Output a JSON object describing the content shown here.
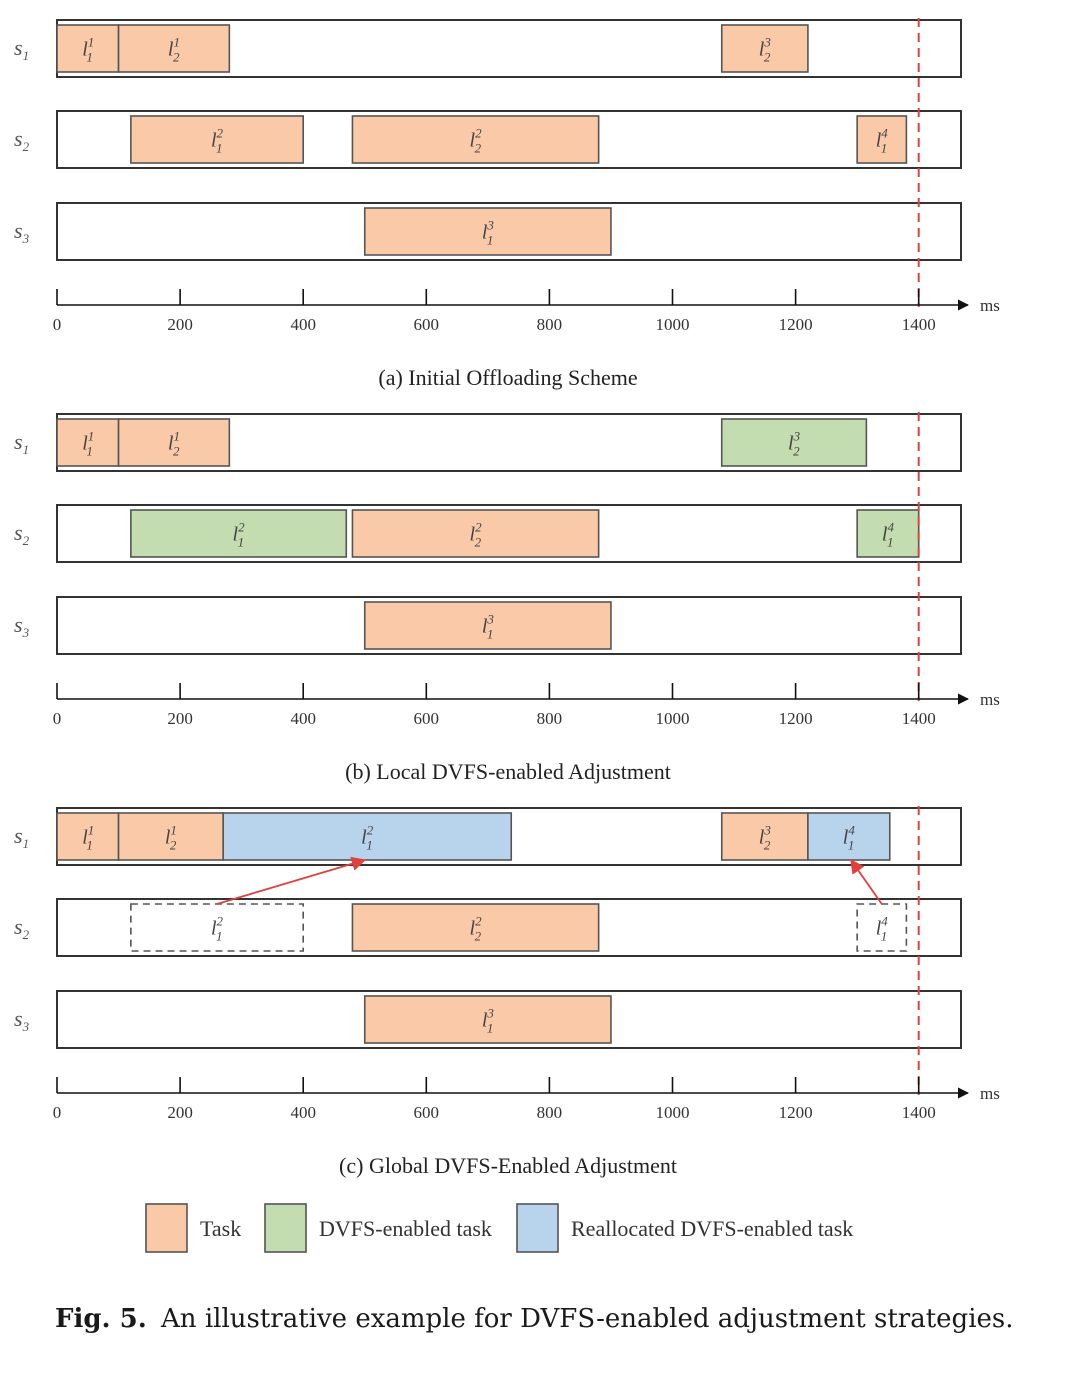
{
  "colors": {
    "task": "#fac9a8",
    "dvfs": "#c3dcb0",
    "realloc": "#b8d3ec",
    "deadline": "#e0413c",
    "arrow": "#e0413c"
  },
  "axis": {
    "ticks": [
      0,
      200,
      400,
      600,
      800,
      1000,
      1200,
      1400
    ],
    "unit": "ms",
    "max": 1470,
    "deadline": 1400
  },
  "servers": [
    {
      "base": "s",
      "sub": "1"
    },
    {
      "base": "s",
      "sub": "2"
    },
    {
      "base": "s",
      "sub": "3"
    }
  ],
  "panels": [
    {
      "caption": "(a) Initial Offloading Scheme",
      "tasks": [
        {
          "server": 0,
          "start": 0,
          "end": 100,
          "kind": "task",
          "base": "l",
          "sub": "1",
          "sup": "1"
        },
        {
          "server": 0,
          "start": 100,
          "end": 280,
          "kind": "task",
          "base": "l",
          "sub": "2",
          "sup": "1"
        },
        {
          "server": 0,
          "start": 1080,
          "end": 1220,
          "kind": "task",
          "base": "l",
          "sub": "2",
          "sup": "3"
        },
        {
          "server": 1,
          "start": 120,
          "end": 400,
          "kind": "task",
          "base": "l",
          "sub": "1",
          "sup": "2"
        },
        {
          "server": 1,
          "start": 480,
          "end": 880,
          "kind": "task",
          "base": "l",
          "sub": "2",
          "sup": "2"
        },
        {
          "server": 1,
          "start": 1300,
          "end": 1380,
          "kind": "task",
          "base": "l",
          "sub": "1",
          "sup": "4"
        },
        {
          "server": 2,
          "start": 500,
          "end": 900,
          "kind": "task",
          "base": "l",
          "sub": "1",
          "sup": "3"
        }
      ],
      "arrows": []
    },
    {
      "caption": "(b) Local DVFS-enabled Adjustment",
      "tasks": [
        {
          "server": 0,
          "start": 0,
          "end": 100,
          "kind": "task",
          "base": "l",
          "sub": "1",
          "sup": "1"
        },
        {
          "server": 0,
          "start": 100,
          "end": 280,
          "kind": "task",
          "base": "l",
          "sub": "2",
          "sup": "1"
        },
        {
          "server": 0,
          "start": 1080,
          "end": 1315,
          "kind": "dvfs",
          "base": "l",
          "sub": "2",
          "sup": "3"
        },
        {
          "server": 1,
          "start": 120,
          "end": 470,
          "kind": "dvfs",
          "base": "l",
          "sub": "1",
          "sup": "2"
        },
        {
          "server": 1,
          "start": 480,
          "end": 880,
          "kind": "task",
          "base": "l",
          "sub": "2",
          "sup": "2"
        },
        {
          "server": 1,
          "start": 1300,
          "end": 1400,
          "kind": "dvfs",
          "base": "l",
          "sub": "1",
          "sup": "4"
        },
        {
          "server": 2,
          "start": 500,
          "end": 900,
          "kind": "task",
          "base": "l",
          "sub": "1",
          "sup": "3"
        }
      ],
      "arrows": []
    },
    {
      "caption": "(c) Global DVFS-Enabled Adjustment",
      "tasks": [
        {
          "server": 0,
          "start": 0,
          "end": 100,
          "kind": "task",
          "base": "l",
          "sub": "1",
          "sup": "1"
        },
        {
          "server": 0,
          "start": 100,
          "end": 270,
          "kind": "task",
          "base": "l",
          "sub": "2",
          "sup": "1"
        },
        {
          "server": 0,
          "start": 270,
          "end": 738,
          "kind": "realloc",
          "base": "l",
          "sub": "1",
          "sup": "2"
        },
        {
          "server": 0,
          "start": 1080,
          "end": 1220,
          "kind": "task",
          "base": "l",
          "sub": "2",
          "sup": "3"
        },
        {
          "server": 0,
          "start": 1220,
          "end": 1353,
          "kind": "realloc",
          "base": "l",
          "sub": "1",
          "sup": "4"
        },
        {
          "server": 1,
          "start": 120,
          "end": 400,
          "kind": "ghost",
          "base": "l",
          "sub": "1",
          "sup": "2"
        },
        {
          "server": 1,
          "start": 480,
          "end": 880,
          "kind": "task",
          "base": "l",
          "sub": "2",
          "sup": "2"
        },
        {
          "server": 1,
          "start": 1300,
          "end": 1380,
          "kind": "ghost",
          "base": "l",
          "sub": "1",
          "sup": "4"
        },
        {
          "server": 2,
          "start": 500,
          "end": 900,
          "kind": "task",
          "base": "l",
          "sub": "1",
          "sup": "3"
        }
      ],
      "arrows": [
        {
          "from_ms": 260,
          "from_server": 1,
          "to_ms": 500,
          "to_server": 0
        },
        {
          "from_ms": 1340,
          "from_server": 1,
          "to_ms": 1290,
          "to_server": 0
        }
      ]
    }
  ],
  "legend": [
    {
      "kind": "task",
      "label": "Task"
    },
    {
      "kind": "dvfs",
      "label": "DVFS-enabled task"
    },
    {
      "kind": "realloc",
      "label": "Reallocated DVFS-enabled task"
    }
  ],
  "figure_caption": {
    "number": "Fig. 5.",
    "text": "An illustrative example for DVFS-enabled adjustment strategies."
  }
}
